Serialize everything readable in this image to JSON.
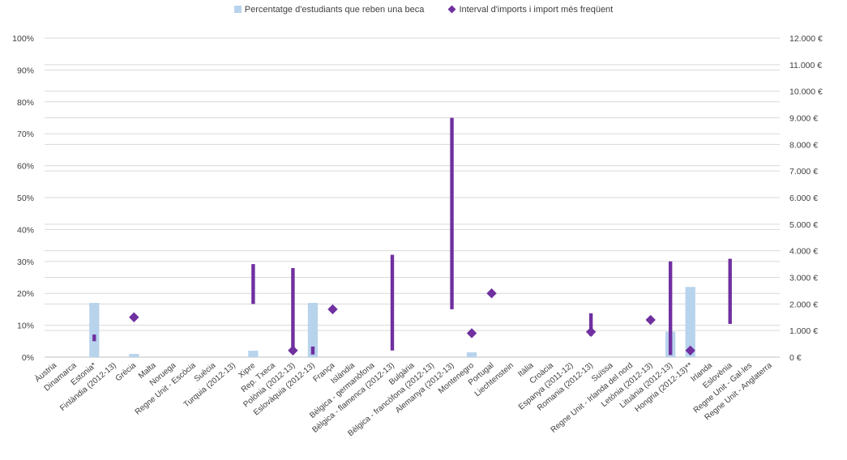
{
  "chart_data": {
    "type": "bar",
    "title": "",
    "legend": {
      "position": "top-center",
      "entries": [
        {
          "name": "Percentatge d'estudiants que reben una beca",
          "marker": "square",
          "color": "#b8d3ec"
        },
        {
          "name": "Interval d'imports i import més freqüent",
          "marker": "diamond",
          "color": "#7030a0"
        }
      ]
    },
    "colors": {
      "bar": "#b8d3ec",
      "range": "#7030a0",
      "grid": "#d9d9d9",
      "axis": "#bfbfbf",
      "text": "#404040"
    },
    "grid": true,
    "y_left": {
      "ylim": [
        0,
        100
      ],
      "ticks": [
        0,
        10,
        20,
        30,
        40,
        50,
        60,
        70,
        80,
        90,
        100
      ],
      "tick_labels": [
        "0%",
        "10%",
        "20%",
        "30%",
        "40%",
        "50%",
        "60%",
        "70%",
        "80%",
        "90%",
        "100%"
      ]
    },
    "y_right": {
      "ylim": [
        0,
        12000
      ],
      "ticks": [
        0,
        1000,
        2000,
        3000,
        4000,
        5000,
        6000,
        7000,
        8000,
        9000,
        10000,
        11000,
        12000
      ],
      "tick_labels": [
        "0 €",
        "1.000 €",
        "2.000 €",
        "3.000 €",
        "4.000 €",
        "5.000 €",
        "6.000 €",
        "7.000 €",
        "8.000 €",
        "9.000 €",
        "10.000 €",
        "11.000 €",
        "12.000 €"
      ]
    },
    "categories": [
      "Àustria",
      "Dinamarca",
      "Estonia*",
      "Finlàndia (2012-13)",
      "Grècia",
      "Malta",
      "Noruega",
      "Regne Unit - Escòcia",
      "Suècia",
      "Turquia (2012-13)",
      "Xipre",
      "Rep. Txeca",
      "Polònia (2012-13)",
      "Eslovàquia (2012-13)",
      "França",
      "Islàndia",
      "Bèlgica - germanòfona",
      "Bèlgica - flamenca (2012-13)",
      "Bulgària",
      "Bèlgica - francòfona (2012-13)",
      "Alemanya (2012-13)",
      "Montenegro",
      "Portugal",
      "Liechtenstein",
      "Itàlia",
      "Croàcia",
      "Espanya (2011-12)",
      "Romania (2012-13)",
      "Suïssa",
      "Regne Unit - Irlanda del nord",
      "Letònia (2012-13)",
      "Lituània (2012-13)",
      "Hongria (2012-13)**",
      "Irlanda",
      "Eslovènia",
      "Regne Unit - Gal·les",
      "Regne Unit - Anglaterra"
    ],
    "series": [
      {
        "name": "Percentatge d'estudiants que reben una beca",
        "type": "bar",
        "axis": "left",
        "values": [
          null,
          null,
          17,
          null,
          1,
          null,
          null,
          null,
          null,
          null,
          2,
          null,
          null,
          17,
          null,
          null,
          null,
          null,
          null,
          null,
          null,
          1.5,
          null,
          null,
          null,
          null,
          null,
          null,
          null,
          null,
          null,
          8,
          22,
          null,
          null,
          null,
          null
        ]
      },
      {
        "name": "Interval d'imports i import més freqüent",
        "type": "range",
        "axis": "right",
        "low": [
          null,
          null,
          600,
          null,
          null,
          null,
          null,
          null,
          null,
          null,
          2000,
          null,
          250,
          100,
          null,
          null,
          null,
          250,
          null,
          null,
          1800,
          null,
          null,
          null,
          null,
          null,
          null,
          800,
          null,
          null,
          null,
          80,
          null,
          null,
          1250,
          null,
          null
        ],
        "high": [
          null,
          null,
          850,
          null,
          null,
          null,
          null,
          null,
          null,
          null,
          3500,
          null,
          3350,
          400,
          null,
          null,
          null,
          3850,
          null,
          null,
          9000,
          null,
          null,
          null,
          null,
          null,
          null,
          1650,
          null,
          null,
          null,
          3600,
          null,
          null,
          3700,
          null,
          null
        ],
        "most_frequent": [
          null,
          null,
          null,
          null,
          1500,
          null,
          null,
          null,
          null,
          null,
          null,
          null,
          250,
          null,
          1800,
          null,
          null,
          null,
          null,
          null,
          null,
          900,
          2400,
          null,
          null,
          null,
          null,
          950,
          null,
          null,
          1400,
          null,
          250,
          null,
          null,
          null,
          null
        ]
      }
    ]
  }
}
